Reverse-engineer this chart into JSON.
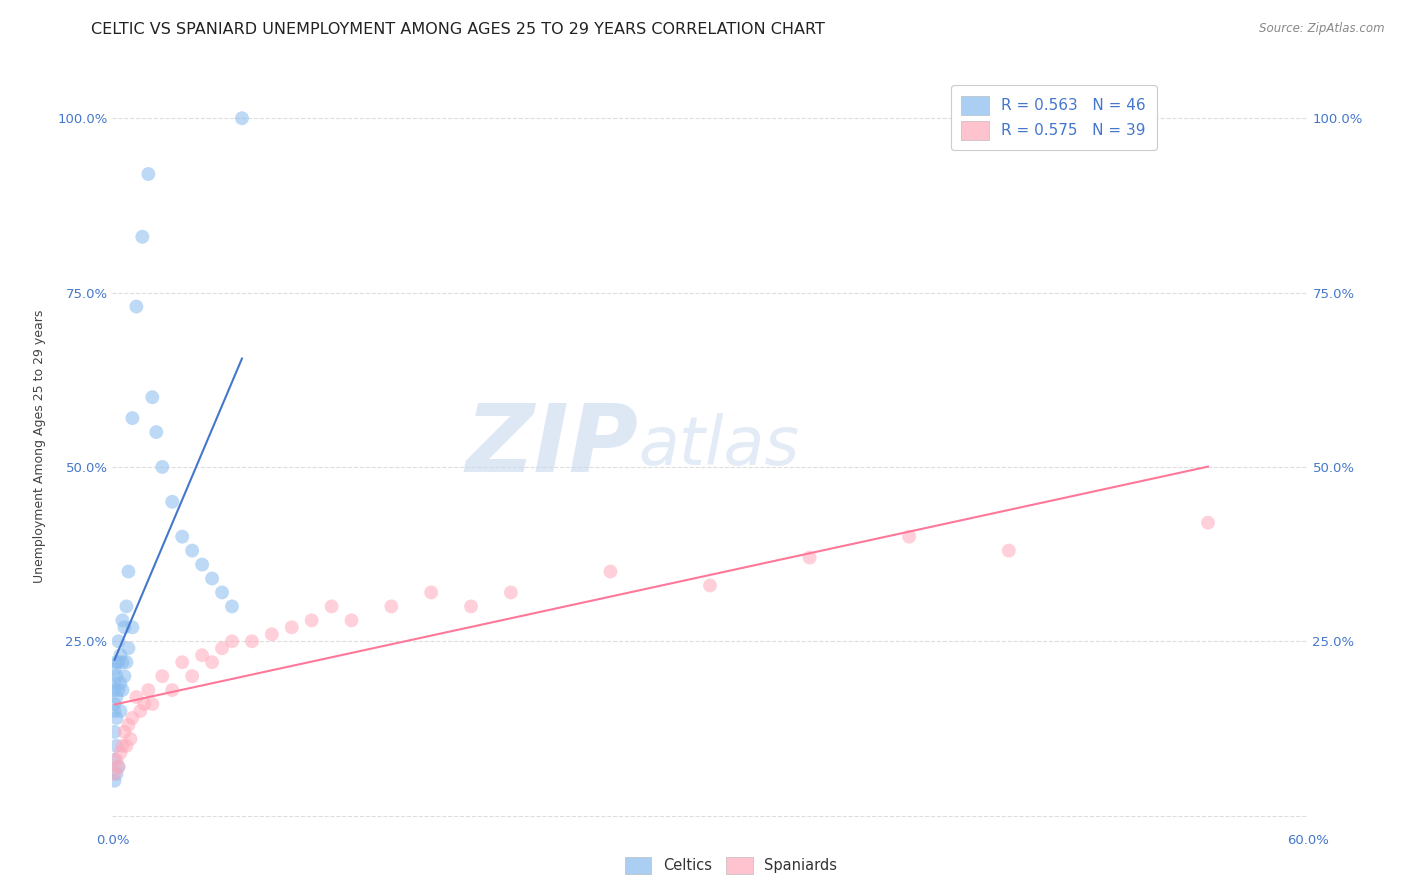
{
  "title": "CELTIC VS SPANIARD UNEMPLOYMENT AMONG AGES 25 TO 29 YEARS CORRELATION CHART",
  "source": "Source: ZipAtlas.com",
  "ylabel_label": "Unemployment Among Ages 25 to 29 years",
  "xlim": [
    0.0,
    0.6
  ],
  "ylim": [
    -0.02,
    1.08
  ],
  "y_ticks": [
    0.0,
    0.25,
    0.5,
    0.75,
    1.0
  ],
  "celtic_color": "#88BBEE",
  "spaniard_color": "#FFAABB",
  "celtic_line_color": "#4477CC",
  "spaniard_line_color": "#FF7799",
  "legend_celtic_r": "R = 0.563",
  "legend_celtic_n": "N = 46",
  "legend_spaniard_r": "R = 0.575",
  "legend_spaniard_n": "N = 39",
  "legend_celtic_label": "Celtics",
  "legend_spaniard_label": "Spaniards",
  "celtic_x": [
    0.001,
    0.001,
    0.001,
    0.001,
    0.001,
    0.001,
    0.001,
    0.001,
    0.002,
    0.002,
    0.002,
    0.002,
    0.002,
    0.002,
    0.003,
    0.003,
    0.003,
    0.003,
    0.004,
    0.004,
    0.004,
    0.005,
    0.005,
    0.005,
    0.006,
    0.006,
    0.007,
    0.007,
    0.008,
    0.008,
    0.01,
    0.01,
    0.012,
    0.015,
    0.018,
    0.02,
    0.022,
    0.025,
    0.03,
    0.035,
    0.04,
    0.045,
    0.05,
    0.055,
    0.06,
    0.065
  ],
  "celtic_y": [
    0.21,
    0.19,
    0.18,
    0.16,
    0.15,
    0.12,
    0.08,
    0.05,
    0.22,
    0.2,
    0.17,
    0.14,
    0.1,
    0.06,
    0.25,
    0.22,
    0.18,
    0.07,
    0.23,
    0.19,
    0.15,
    0.28,
    0.22,
    0.18,
    0.27,
    0.2,
    0.3,
    0.22,
    0.35,
    0.24,
    0.57,
    0.27,
    0.73,
    0.83,
    0.92,
    0.6,
    0.55,
    0.5,
    0.45,
    0.4,
    0.38,
    0.36,
    0.34,
    0.32,
    0.3,
    1.0
  ],
  "spaniard_x": [
    0.001,
    0.002,
    0.003,
    0.004,
    0.005,
    0.006,
    0.007,
    0.008,
    0.009,
    0.01,
    0.012,
    0.014,
    0.016,
    0.018,
    0.02,
    0.025,
    0.03,
    0.035,
    0.04,
    0.045,
    0.05,
    0.055,
    0.06,
    0.07,
    0.08,
    0.09,
    0.1,
    0.11,
    0.12,
    0.14,
    0.16,
    0.18,
    0.2,
    0.25,
    0.3,
    0.35,
    0.4,
    0.45,
    0.55
  ],
  "spaniard_y": [
    0.06,
    0.08,
    0.07,
    0.09,
    0.1,
    0.12,
    0.1,
    0.13,
    0.11,
    0.14,
    0.17,
    0.15,
    0.16,
    0.18,
    0.16,
    0.2,
    0.18,
    0.22,
    0.2,
    0.23,
    0.22,
    0.24,
    0.25,
    0.25,
    0.26,
    0.27,
    0.28,
    0.3,
    0.28,
    0.3,
    0.32,
    0.3,
    0.32,
    0.35,
    0.33,
    0.37,
    0.4,
    0.38,
    0.42
  ],
  "watermark_zip": "ZIP",
  "watermark_atlas": "atlas",
  "background_color": "#FFFFFF",
  "grid_color": "#DDDDDD",
  "marker_size": 100,
  "marker_alpha": 0.55,
  "title_fontsize": 11.5,
  "axis_fontsize": 9,
  "tick_fontsize": 9.5,
  "source_fontsize": 8.5
}
